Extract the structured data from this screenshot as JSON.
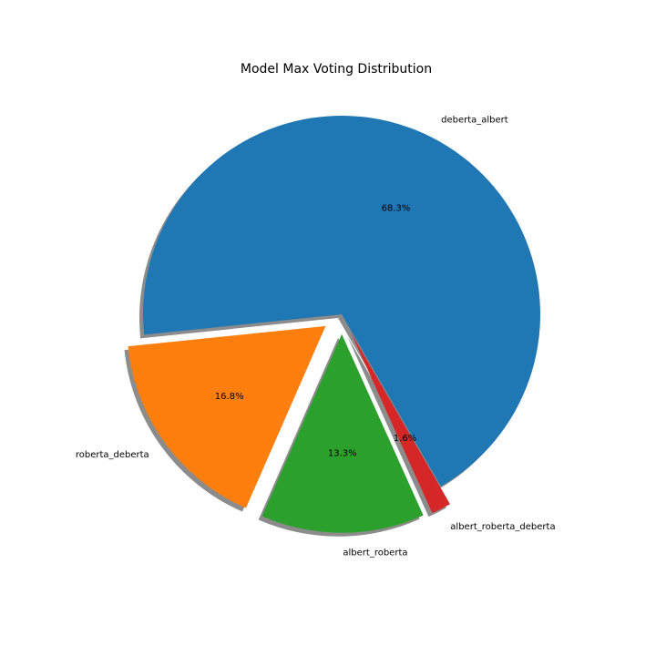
{
  "chart_data": {
    "type": "pie",
    "title": "Model Max Voting Distribution",
    "categories": [
      "deberta_albert",
      "roberta_deberta",
      "albert_roberta",
      "albert_roberta_deberta"
    ],
    "values": [
      68.3,
      16.8,
      13.3,
      1.6
    ],
    "percent_labels": [
      "68.3%",
      "16.8%",
      "13.3%",
      "1.6%"
    ],
    "colors": [
      "#1f77b4",
      "#ff7f0e",
      "#2ca02c",
      "#d62728"
    ],
    "explode": [
      0,
      0.1,
      0.1,
      0.1
    ],
    "shadow": true,
    "start_angle_deg": -60,
    "counterclock": true
  }
}
